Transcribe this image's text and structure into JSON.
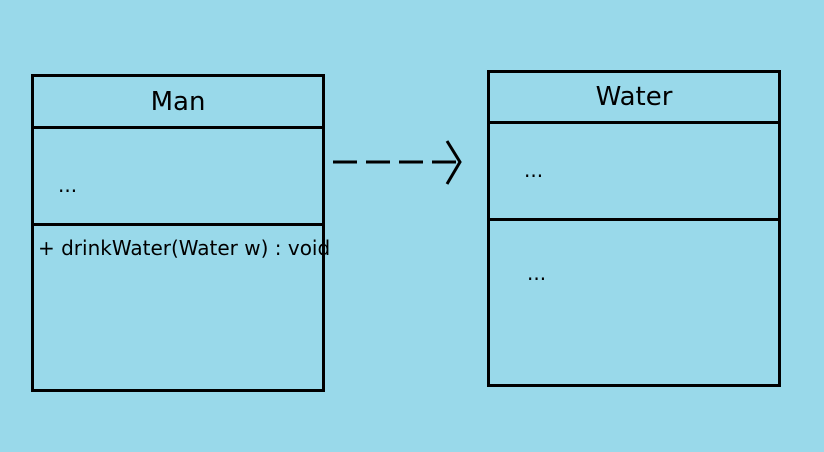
{
  "diagram": {
    "classes": [
      {
        "id": "man",
        "name": "Man",
        "attributes": "...",
        "operations": "+ drinkWater(Water w) : void"
      },
      {
        "id": "water",
        "name": "Water",
        "attributes": "...",
        "operations": "..."
      }
    ],
    "relationship": {
      "type": "dependency",
      "from": "Man",
      "to": "Water",
      "line_style": "dashed",
      "arrowhead": "open"
    },
    "colors": {
      "background": "#99d9ea",
      "stroke": "#000000"
    }
  }
}
